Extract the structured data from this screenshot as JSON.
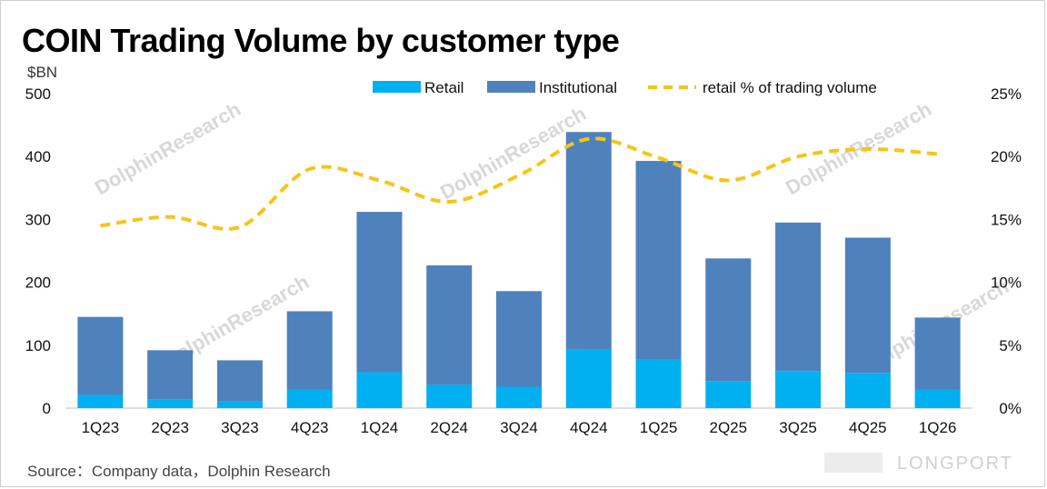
{
  "title": "COIN Trading Volume by customer type",
  "unit_label": "$BN",
  "source": "Source：Company data，Dolphin Research",
  "watermark": {
    "text": "DolphinResearch",
    "brand": "LONGPORT"
  },
  "colors": {
    "retail": "#00b0f0",
    "institutional": "#4f81bd",
    "line": "#f5c518"
  },
  "chart_data": {
    "type": "bar",
    "stacked": true,
    "categories": [
      "1Q23",
      "2Q23",
      "3Q23",
      "4Q23",
      "1Q24",
      "2Q24",
      "3Q24",
      "4Q24",
      "1Q25",
      "2Q25",
      "3Q25",
      "4Q25",
      "1Q26"
    ],
    "series": [
      {
        "name": "Retail",
        "values": [
          21,
          14,
          11,
          29,
          57,
          37,
          34,
          94,
          78,
          43,
          59,
          56,
          29
        ]
      },
      {
        "name": "Institutional",
        "values": [
          124,
          78,
          65,
          125,
          255,
          190,
          152,
          345,
          315,
          195,
          236,
          215,
          115
        ]
      }
    ],
    "line_series": {
      "name": "retail % of trading volume",
      "values": [
        14.5,
        15.2,
        14.4,
        19.0,
        18.1,
        16.4,
        18.5,
        21.4,
        19.9,
        18.1,
        20.0,
        20.6,
        20.2
      ],
      "axis": "right"
    },
    "ylim": [
      0,
      500
    ],
    "y_ticks": [
      "0",
      "100",
      "200",
      "300",
      "400",
      "500"
    ],
    "y2lim": [
      0,
      25
    ],
    "y2_ticks": [
      "0%",
      "5%",
      "10%",
      "15%",
      "20%",
      "25%"
    ],
    "legend_position": "top-center",
    "grid": false
  }
}
